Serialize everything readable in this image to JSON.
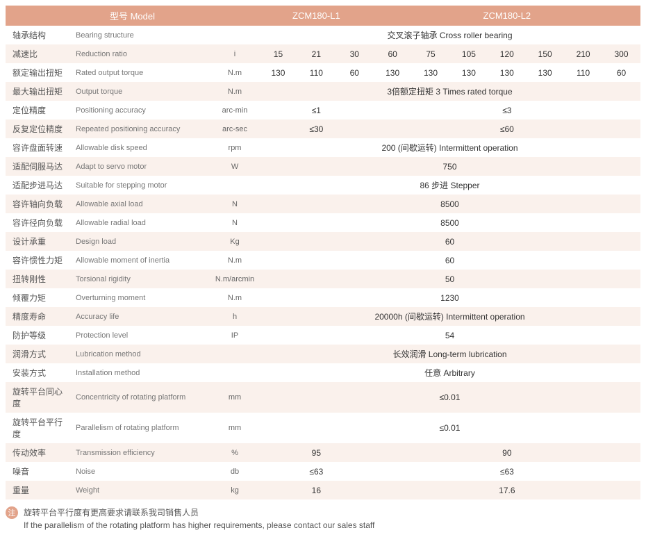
{
  "colors": {
    "header_bg": "#e2a38a",
    "header_fg": "#ffffff",
    "row_even_bg": "#faf1ec",
    "row_odd_bg": "#ffffff",
    "text": "#333333"
  },
  "header": {
    "model_label": "型号 Model",
    "col_l1": "ZCM180-L1",
    "col_l2": "ZCM180-L2"
  },
  "rows": [
    {
      "cn": "轴承结构",
      "en": "Bearing structure",
      "unit": "",
      "span_all": "交叉滚子轴承 Cross roller bearing"
    },
    {
      "cn": "减速比",
      "en": "Reduction ratio",
      "unit": "i",
      "l1": [
        "15",
        "21",
        "30"
      ],
      "l2": [
        "60",
        "75",
        "105",
        "120",
        "150",
        "210",
        "300"
      ]
    },
    {
      "cn": "额定输出扭矩",
      "en": "Rated output torque",
      "unit": "N.m",
      "l1": [
        "130",
        "110",
        "60"
      ],
      "l2": [
        "130",
        "130",
        "130",
        "130",
        "130",
        "110",
        "60"
      ]
    },
    {
      "cn": "最大输出扭矩",
      "en": "Output torque",
      "unit": "N.m",
      "span_all": "3倍额定扭矩 3 Times rated torque"
    },
    {
      "cn": "定位精度",
      "en": "Positioning accuracy",
      "unit": "arc-min",
      "l1_merged": "≤1",
      "l2_merged": "≤3"
    },
    {
      "cn": "反复定位精度",
      "en": "Repeated positioning accuracy",
      "unit": "arc-sec",
      "l1_merged": "≤30",
      "l2_merged": "≤60"
    },
    {
      "cn": "容许盘面转速",
      "en": "Allowable disk speed",
      "unit": "rpm",
      "span_all": "200 (间歇运转) Intermittent operation"
    },
    {
      "cn": "适配伺服马达",
      "en": "Adapt to servo motor",
      "unit": "W",
      "span_all": "750"
    },
    {
      "cn": "适配步进马达",
      "en": "Suitable for stepping motor",
      "unit": "",
      "span_all": "86 步进 Stepper"
    },
    {
      "cn": "容许轴向负载",
      "en": "Allowable axial load",
      "unit": "N",
      "span_all": "8500"
    },
    {
      "cn": "容许径向负载",
      "en": "Allowable radial load",
      "unit": "N",
      "span_all": "8500"
    },
    {
      "cn": "设计承重",
      "en": "Design load",
      "unit": "Kg",
      "span_all": "60"
    },
    {
      "cn": "容许惯性力矩",
      "en": "Allowable moment of inertia",
      "unit": "N.m",
      "span_all": "60"
    },
    {
      "cn": "扭转刚性",
      "en": "Torsional rigidity",
      "unit": "N.m/arcmin",
      "span_all": "50"
    },
    {
      "cn": "倾覆力矩",
      "en": "Overturning moment",
      "unit": "N.m",
      "span_all": "1230"
    },
    {
      "cn": "精度寿命",
      "en": "Accuracy life",
      "unit": "h",
      "span_all": "20000h (间歇运转) Intermittent operation"
    },
    {
      "cn": "防护等级",
      "en": "Protection level",
      "unit": "IP",
      "span_all": "54"
    },
    {
      "cn": "润滑方式",
      "en": "Lubrication method",
      "unit": "",
      "span_all": "长效润滑 Long-term lubrication"
    },
    {
      "cn": "安装方式",
      "en": "Installation method",
      "unit": "",
      "span_all": "任意 Arbitrary"
    },
    {
      "cn": "旋转平台同心度",
      "en": "Concentricity of rotating platform",
      "unit": "mm",
      "span_all": "≤0.01"
    },
    {
      "cn": "旋转平台平行度",
      "en": "Parallelism of rotating platform",
      "unit": "mm",
      "span_all": "≤0.01"
    },
    {
      "cn": "传动效率",
      "en": "Transmission efficiency",
      "unit": "%",
      "l1_merged": "95",
      "l2_merged": "90"
    },
    {
      "cn": "噪音",
      "en": "Noise",
      "unit": "db",
      "l1_merged": "≤63",
      "l2_merged": "≤63"
    },
    {
      "cn": "重量",
      "en": "Weight",
      "unit": "kg",
      "l1_merged": "16",
      "l2_merged": "17.6"
    }
  ],
  "note": {
    "badge": "注",
    "cn": "旋转平台平行度有更高要求请联系我司销售人员",
    "en": "If the parallelism of the rotating platform has higher requirements, please contact our sales staff"
  }
}
